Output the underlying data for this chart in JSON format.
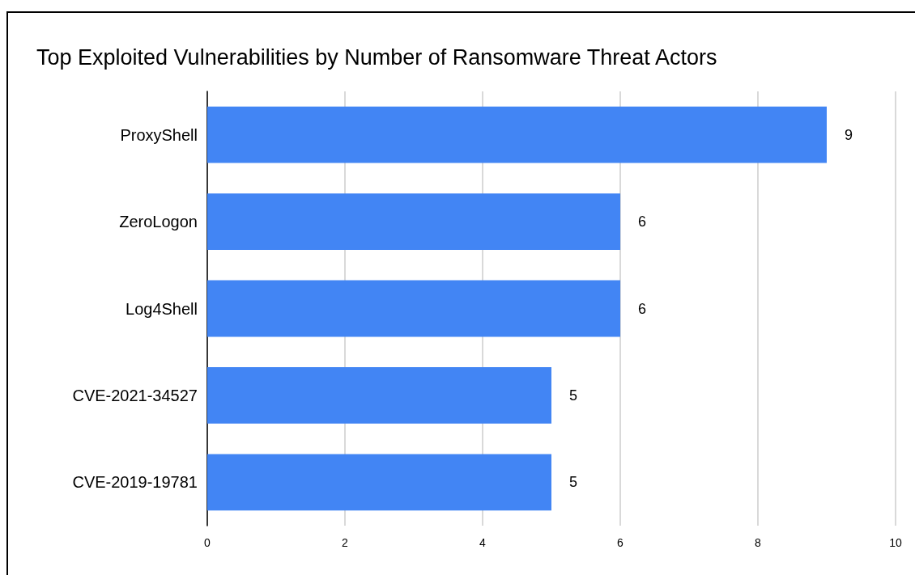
{
  "chart_data": {
    "type": "bar",
    "orientation": "horizontal",
    "title": "Top Exploited Vulnerabilities by Number of Ransomware Threat Actors",
    "categories": [
      "ProxyShell",
      "ZeroLogon",
      "Log4Shell",
      "CVE-2021-34527",
      "CVE-2019-19781"
    ],
    "values": [
      9,
      6,
      6,
      5,
      5
    ],
    "color": "#4285f4",
    "xlim": [
      0,
      10
    ],
    "xticks": [
      0,
      2,
      4,
      6,
      8,
      10
    ],
    "grid": "x",
    "data_labels": true
  }
}
